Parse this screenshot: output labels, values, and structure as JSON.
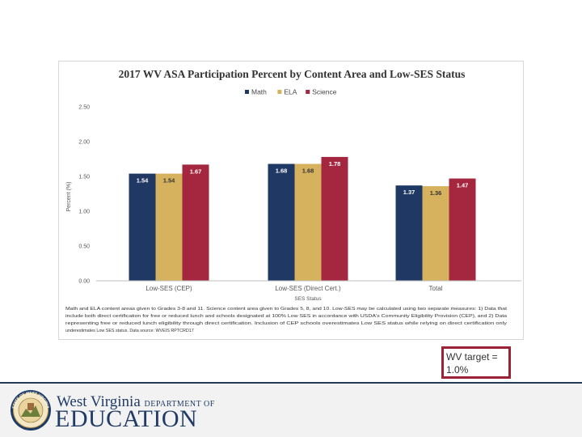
{
  "chart_data": {
    "type": "bar",
    "title": "2017 WV ASA Participation Percent by Content Area and Low-SES Status",
    "categories": [
      "Low-SES (CEP)",
      "Low-SES (Direct Cert.)",
      "Total"
    ],
    "series": [
      {
        "name": "Math",
        "color": "#1f3864",
        "values": [
          1.54,
          1.68,
          1.37
        ]
      },
      {
        "name": "ELA",
        "color": "#d6b25e",
        "values": [
          1.54,
          1.68,
          1.36
        ]
      },
      {
        "name": "Science",
        "color": "#a4273f",
        "values": [
          1.67,
          1.78,
          1.47
        ]
      }
    ],
    "xlabel": "SES Status",
    "ylabel": "Percent (%)",
    "ylim": [
      0,
      2.5
    ],
    "yticks": [
      "0.00",
      "0.50",
      "1.00",
      "1.50",
      "2.00",
      "2.50"
    ],
    "legend_position": "top-center",
    "grid": false
  },
  "footnote": {
    "line1": "Math and ELA content areas given to Grades 3-8 and 11. Science content area given to Grades 5, 8, and 10. Low-SES may be calculated using two separate measures: 1) Data that",
    "line2": "include both direct certification for free or reduced lunch and schools designated at 100% Low SES in accordance with USDA's Community Eligibility Provision (CEP), and 2) Data",
    "line3": "representing free or reduced lunch eligibility through direct certification. Inclusion of CEP schools overestimates Low SES status while relying on direct certification only",
    "line4": "underestimates Low SES status. Data source: WVEIS RPTCRD17"
  },
  "target_box": {
    "line1": "WV target =",
    "line2": "1.0%"
  },
  "footer": {
    "brand_line1": "West Virginia",
    "brand_dept": "DEPARTMENT OF",
    "brand_line2": "EDUCATION",
    "seal_text": "STATE OF WEST VIRGINIA"
  }
}
